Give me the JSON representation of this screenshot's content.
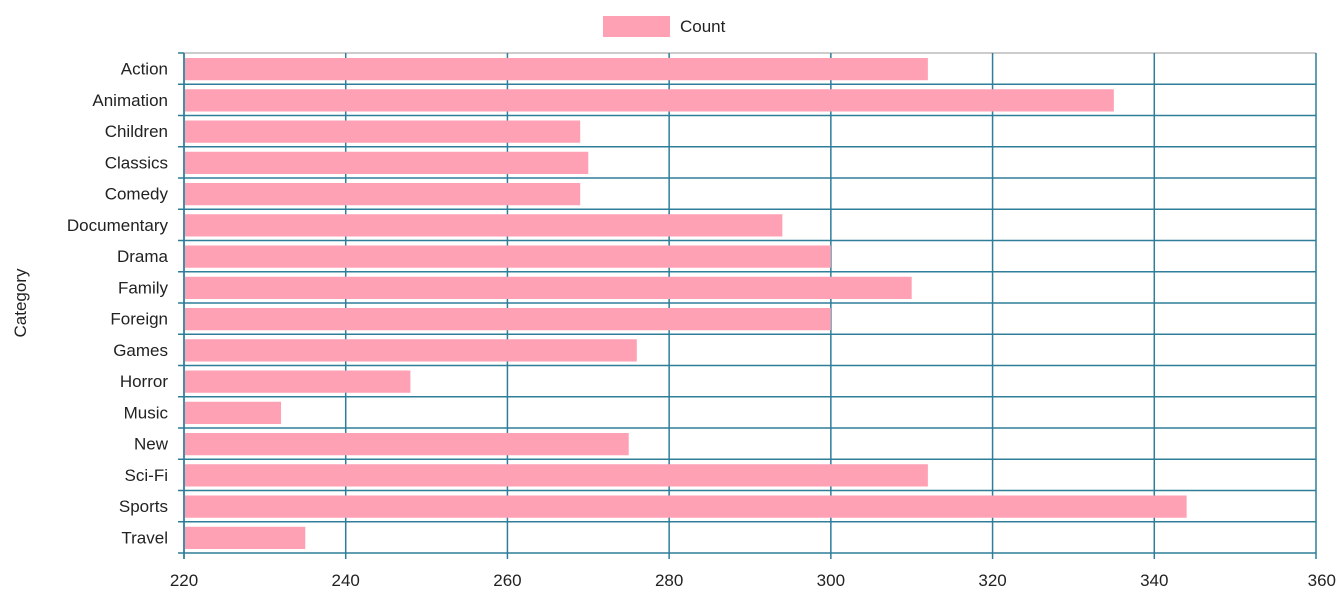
{
  "chart_data": {
    "type": "bar",
    "orientation": "horizontal",
    "categories": [
      "Action",
      "Animation",
      "Children",
      "Classics",
      "Comedy",
      "Documentary",
      "Drama",
      "Family",
      "Foreign",
      "Games",
      "Horror",
      "Music",
      "New",
      "Sci-Fi",
      "Sports",
      "Travel"
    ],
    "series": [
      {
        "name": "Count",
        "values": [
          312,
          335,
          269,
          270,
          269,
          294,
          300,
          310,
          300,
          276,
          248,
          232,
          275,
          312,
          344,
          235
        ],
        "color": "#ffa1b5"
      }
    ],
    "xlim": [
      220,
      360
    ],
    "xticks": [
      220,
      240,
      260,
      280,
      300,
      320,
      340,
      360
    ],
    "ylabel": "Category",
    "grid": true,
    "grid_color": "#2e7d99",
    "legend_position": "top-center"
  }
}
